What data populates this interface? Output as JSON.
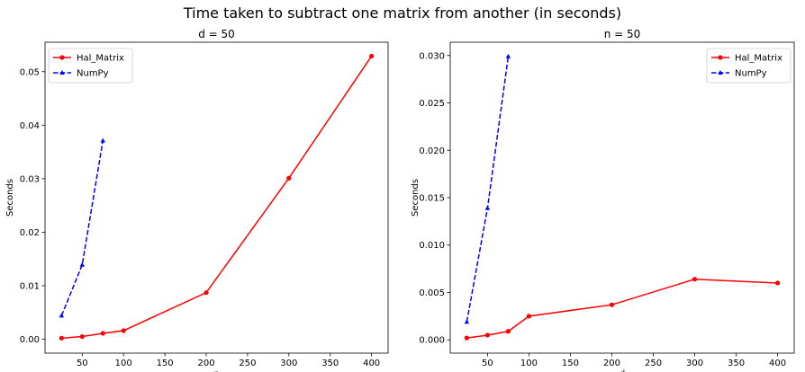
{
  "figure": {
    "title": "Time taken to subtract one matrix from another (in seconds)"
  },
  "chart_data": [
    {
      "type": "line",
      "title": "d = 50",
      "xlabel": "n",
      "ylabel": "Seconds",
      "xlim": [
        5,
        420
      ],
      "ylim": [
        -0.0026,
        0.0555
      ],
      "xticks": [
        50,
        100,
        150,
        200,
        250,
        300,
        350,
        400
      ],
      "xtick_labels": [
        "50",
        "100",
        "150",
        "200",
        "250",
        "300",
        "350",
        "400"
      ],
      "yticks": [
        0.0,
        0.01,
        0.02,
        0.03,
        0.04,
        0.05
      ],
      "ytick_labels": [
        "0.00",
        "0.01",
        "0.02",
        "0.03",
        "0.04",
        "0.05"
      ],
      "legend_position": "top-left",
      "series": [
        {
          "name": "Hal_Matrix",
          "color": "#ff0000",
          "style": "solid",
          "marker": "circle",
          "x": [
            25,
            50,
            75,
            100,
            200,
            300,
            400
          ],
          "y": [
            0.0002,
            0.0005,
            0.0011,
            0.0016,
            0.0087,
            0.0301,
            0.0529
          ]
        },
        {
          "name": "NumPy",
          "color": "#0000ff",
          "style": "dashed",
          "marker": "triangle",
          "x": [
            25,
            50,
            75
          ],
          "y": [
            0.0044,
            0.0139,
            0.0371
          ]
        }
      ]
    },
    {
      "type": "line",
      "title": "n = 50",
      "xlabel": "d",
      "ylabel": "Seconds",
      "xlim": [
        5,
        420
      ],
      "ylim": [
        -0.0014,
        0.0314
      ],
      "xticks": [
        50,
        100,
        150,
        200,
        250,
        300,
        350,
        400
      ],
      "xtick_labels": [
        "50",
        "100",
        "150",
        "200",
        "250",
        "300",
        "350",
        "400"
      ],
      "yticks": [
        0.0,
        0.005,
        0.01,
        0.015,
        0.02,
        0.025,
        0.03
      ],
      "ytick_labels": [
        "0.000",
        "0.005",
        "0.010",
        "0.015",
        "0.020",
        "0.025",
        "0.030"
      ],
      "legend_position": "top-right",
      "series": [
        {
          "name": "Hal_Matrix",
          "color": "#ff0000",
          "style": "solid",
          "marker": "circle",
          "x": [
            25,
            50,
            75,
            100,
            200,
            300,
            400
          ],
          "y": [
            0.0002,
            0.0005,
            0.0009,
            0.0025,
            0.0037,
            0.0064,
            0.006
          ]
        },
        {
          "name": "NumPy",
          "color": "#0000ff",
          "style": "dashed",
          "marker": "triangle",
          "x": [
            25,
            50,
            75
          ],
          "y": [
            0.0019,
            0.0139,
            0.0299
          ]
        }
      ]
    }
  ]
}
